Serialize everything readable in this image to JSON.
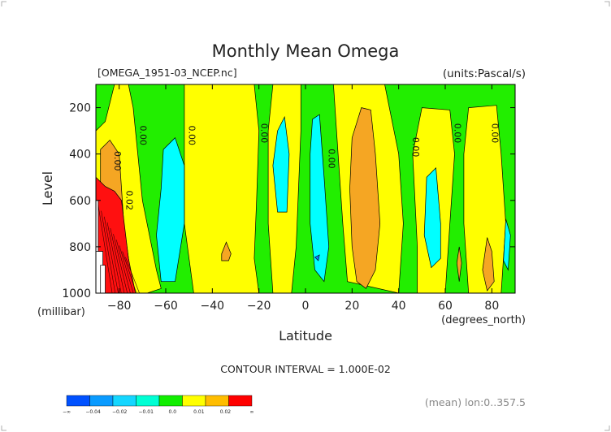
{
  "chart_data": {
    "type": "contour",
    "title": "Monthly Mean Omega",
    "file_label": "[OMEGA_1951-03_NCEP.nc]",
    "units_label": "(units:Pascal/s)",
    "xlabel": "Latitude",
    "x_unit": "(degrees_north)",
    "ylabel": "Level",
    "y_unit": "(millibar)",
    "xlim": [
      -90,
      90
    ],
    "ylim": [
      1000,
      100
    ],
    "x_ticks": [
      -80,
      -60,
      -40,
      -20,
      0,
      20,
      40,
      60,
      80
    ],
    "x_tick_labels": [
      "−80",
      "−60",
      "−40",
      "−20",
      "0",
      "20",
      "40",
      "60",
      "80"
    ],
    "y_ticks": [
      200,
      400,
      600,
      800,
      1000
    ],
    "y_tick_labels": [
      "200",
      "400",
      "600",
      "800",
      "1000"
    ],
    "contour_interval": "CONTOUR INTERVAL = 1.000E-02",
    "mean_note": "(mean) lon:0..357.5",
    "contour_labels": [
      {
        "text": "0.00",
        "lat": -82,
        "level": 430
      },
      {
        "text": "0.02",
        "lat": -77,
        "level": 600
      },
      {
        "text": "0.00",
        "lat": -71,
        "level": 320
      },
      {
        "text": "0.00",
        "lat": -50,
        "level": 320
      },
      {
        "text": "0.00",
        "lat": -19,
        "level": 310
      },
      {
        "text": "0.00",
        "lat": 10,
        "level": 420
      },
      {
        "text": "0.00",
        "lat": 46,
        "level": 370
      },
      {
        "text": "0.00",
        "lat": 64,
        "level": 310
      },
      {
        "text": "0.00",
        "lat": 80,
        "level": 310
      }
    ],
    "colorbar": {
      "colors": [
        "#0051ff",
        "#0a9bff",
        "#14d6ff",
        "#00ffd4",
        "#11ee00",
        "#ffff00",
        "#ffbd00",
        "#ff0000"
      ],
      "tick_labels": [
        "−∞",
        "−0.04",
        "−0.02",
        "−0.01",
        "0.0",
        "0.01",
        "0.02",
        "∞"
      ]
    },
    "region_colors": {
      "positive_weak": "#ffff00",
      "positive": "#f5a623",
      "positive_strong": "#ff1010",
      "near_zero": "#22ee00",
      "negative_weak": "#00ffff",
      "negative": "#1177ff",
      "missing": "#ffffff"
    }
  }
}
